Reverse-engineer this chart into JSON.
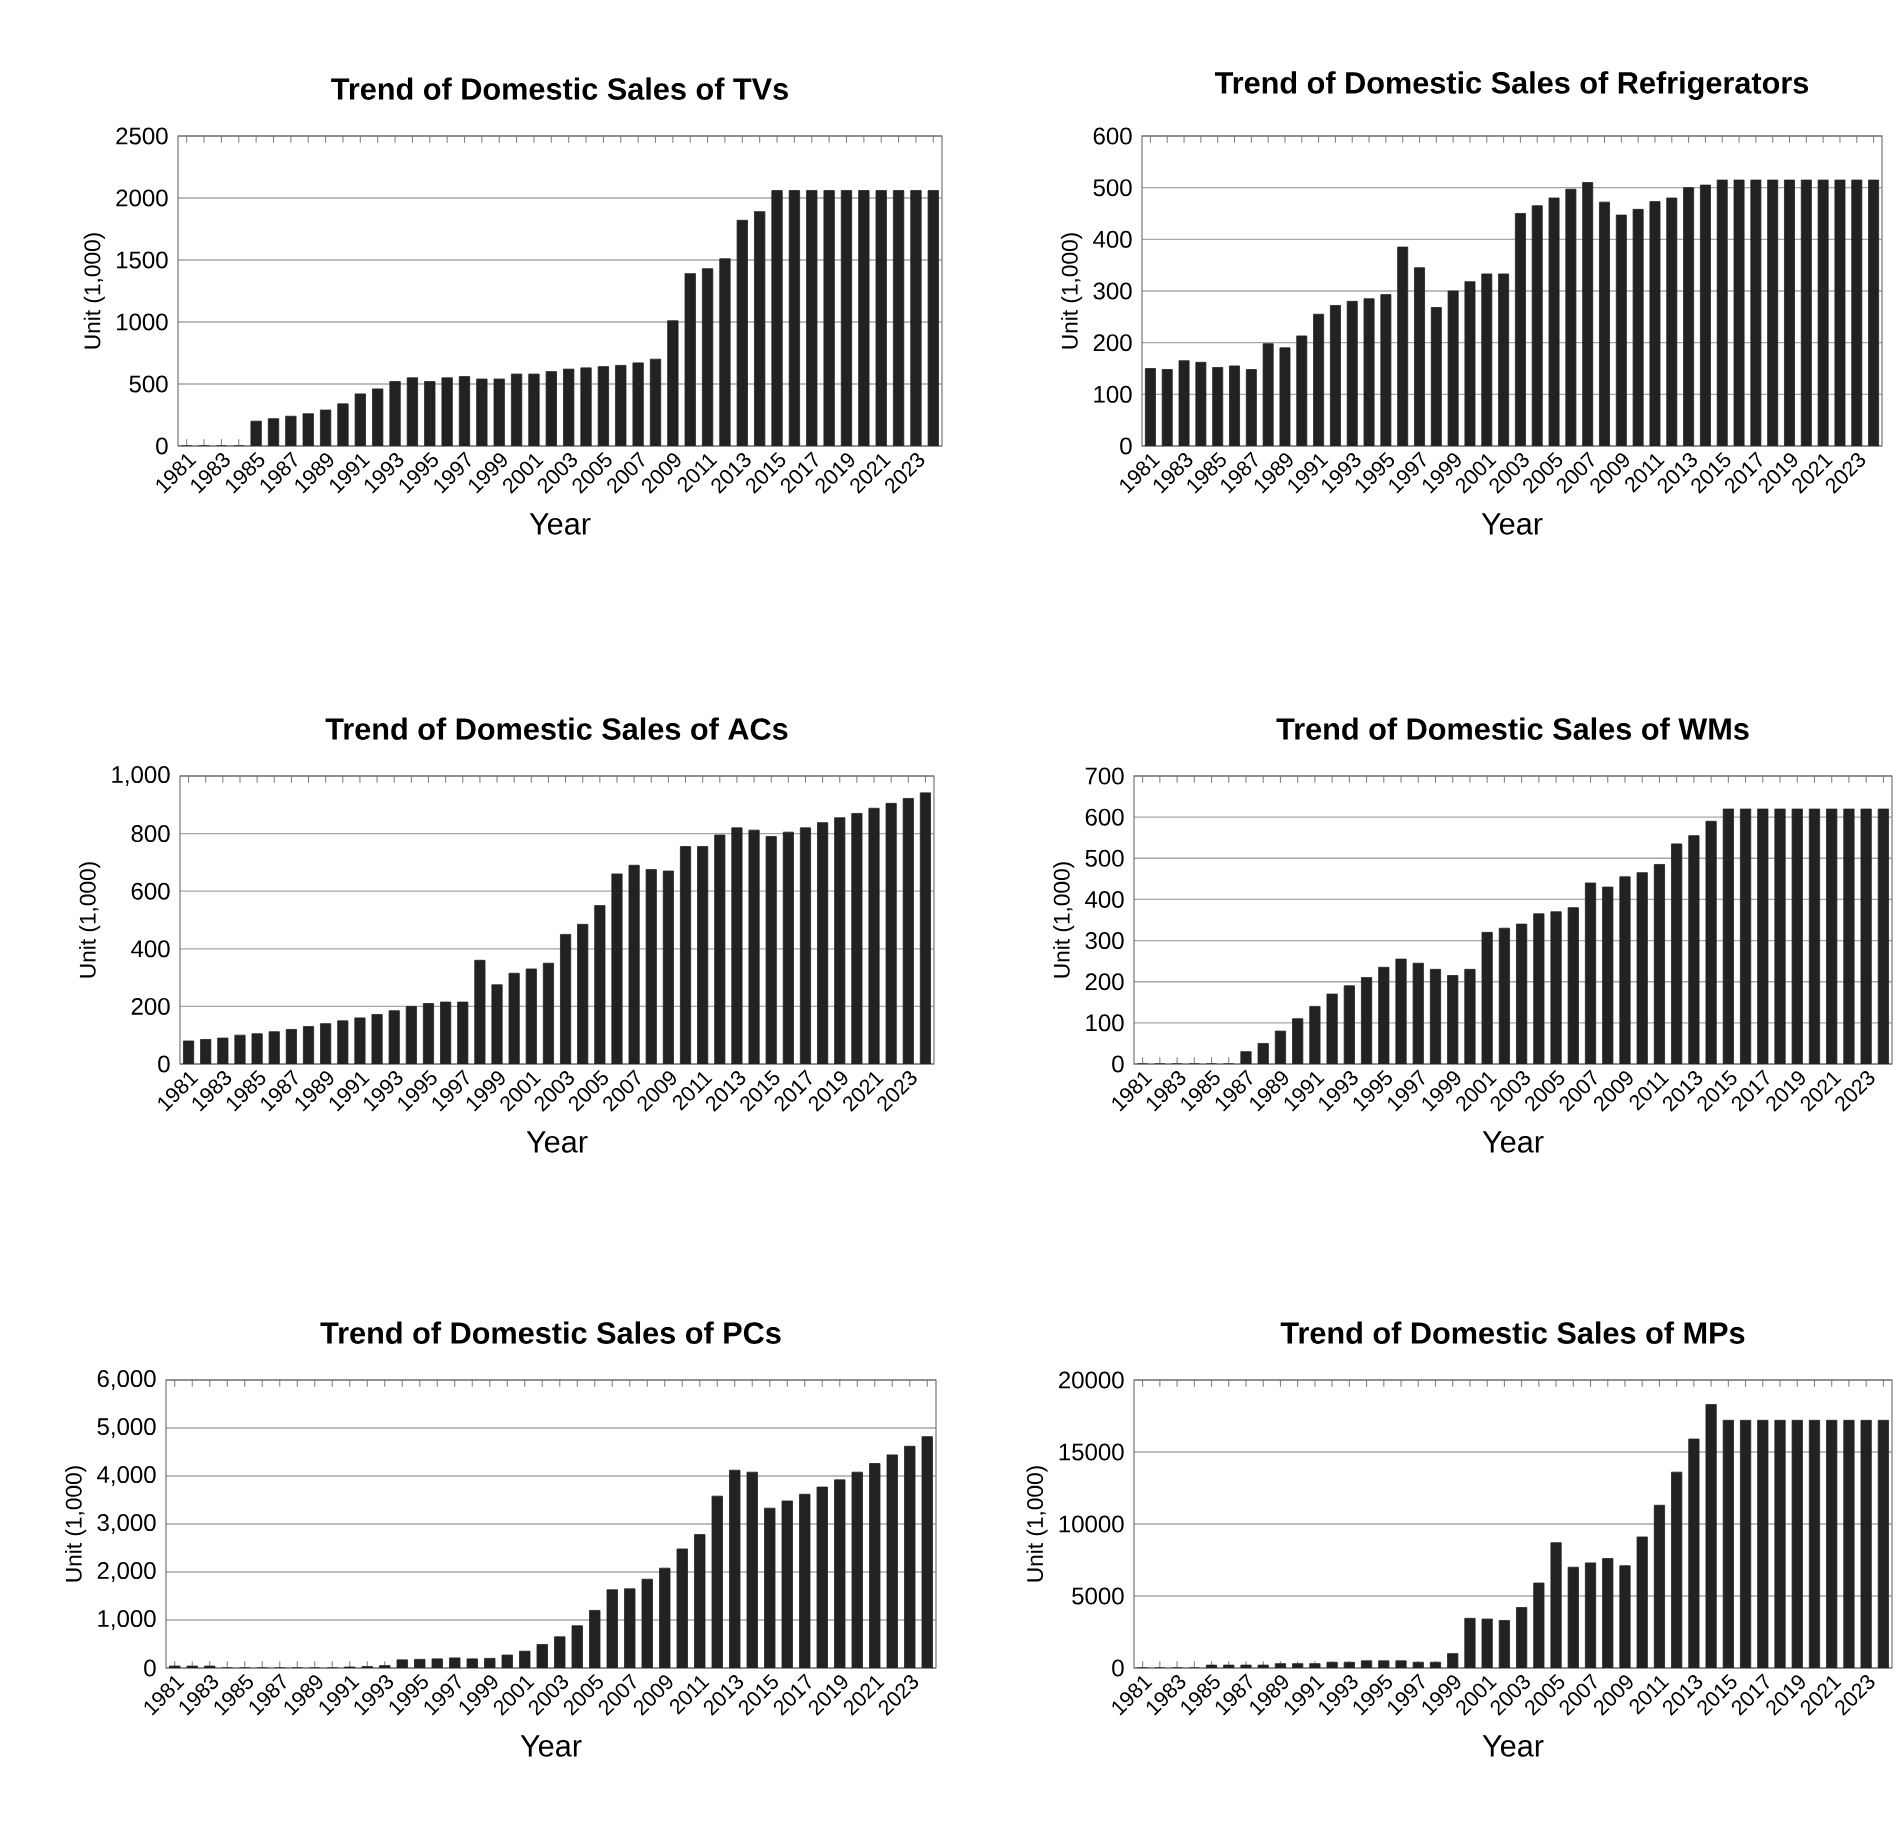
{
  "chart_data": [
    {
      "type": "bar",
      "title": "Trend of Domestic Sales of TVs",
      "xlabel": "Year",
      "ylabel": "Unit (1,000)",
      "color": "#222222",
      "grid": "y",
      "ylim": [
        0,
        2500
      ],
      "yticks": [
        0,
        500,
        1000,
        1500,
        2000,
        2500
      ],
      "categories": [
        "1981",
        null,
        "1983",
        null,
        "1985",
        null,
        "1987",
        null,
        "1989",
        null,
        "1991",
        null,
        "1993",
        null,
        "1995",
        null,
        "1997",
        null,
        "1999",
        null,
        "2001",
        null,
        "2003",
        null,
        "2005",
        null,
        "2007",
        null,
        "2009",
        null,
        "2011",
        null,
        "2013",
        null,
        "2015",
        null,
        "2017",
        null,
        "2019",
        null,
        "2021",
        null,
        "2023",
        null
      ],
      "values": [
        0,
        0,
        0,
        0,
        200,
        220,
        240,
        260,
        290,
        340,
        420,
        460,
        520,
        550,
        520,
        550,
        560,
        540,
        540,
        580,
        580,
        600,
        620,
        630,
        640,
        650,
        670,
        700,
        1010,
        1390,
        1430,
        1510,
        1820,
        1890,
        2060,
        2060,
        2060,
        2060,
        2060,
        2060,
        2060,
        2060,
        2060,
        2060
      ]
    },
    {
      "type": "bar",
      "title": "Trend of Domestic Sales of Refrigerators",
      "xlabel": "Year",
      "ylabel": "Unit (1,000)",
      "color": "#222222",
      "grid": "y",
      "ylim": [
        0,
        600
      ],
      "yticks": [
        0,
        100,
        200,
        300,
        400,
        500,
        600
      ],
      "categories": [
        "1981",
        null,
        "1983",
        null,
        "1985",
        null,
        "1987",
        null,
        "1989",
        null,
        "1991",
        null,
        "1993",
        null,
        "1995",
        null,
        "1997",
        null,
        "1999",
        null,
        "2001",
        null,
        "2003",
        null,
        "2005",
        null,
        "2007",
        null,
        "2009",
        null,
        "2011",
        null,
        "2013",
        null,
        "2015",
        null,
        "2017",
        null,
        "2019",
        null,
        "2021",
        null,
        "2023",
        null
      ],
      "values": [
        150,
        148,
        165,
        162,
        152,
        155,
        148,
        198,
        190,
        213,
        255,
        272,
        280,
        285,
        293,
        385,
        345,
        268,
        300,
        318,
        333,
        333,
        450,
        465,
        480,
        497,
        510,
        472,
        447,
        458,
        473,
        480,
        500,
        505,
        515,
        515,
        515,
        515,
        515,
        515,
        515,
        515,
        515,
        515
      ]
    },
    {
      "type": "bar",
      "title": "Trend of Domestic Sales of ACs",
      "xlabel": "Year",
      "ylabel": "Unit (1,000)",
      "color": "#222222",
      "grid": "y",
      "ylim": [
        0,
        1000
      ],
      "yticks": [
        0,
        200,
        400,
        600,
        800,
        {
          "value": 1000,
          "label": "1,000"
        }
      ],
      "categories": [
        "1981",
        null,
        "1983",
        null,
        "1985",
        null,
        "1987",
        null,
        "1989",
        null,
        "1991",
        null,
        "1993",
        null,
        "1995",
        null,
        "1997",
        null,
        "1999",
        null,
        "2001",
        null,
        "2003",
        null,
        "2005",
        null,
        "2007",
        null,
        "2009",
        null,
        "2011",
        null,
        "2013",
        null,
        "2015",
        null,
        "2017",
        null,
        "2019",
        null,
        "2021",
        null,
        "2023",
        null
      ],
      "values": [
        80,
        85,
        90,
        100,
        105,
        112,
        120,
        130,
        140,
        150,
        160,
        172,
        185,
        200,
        210,
        215,
        215,
        360,
        275,
        315,
        330,
        350,
        450,
        485,
        550,
        660,
        690,
        675,
        670,
        755,
        755,
        795,
        820,
        812,
        790,
        805,
        820,
        838,
        855,
        870,
        888,
        905,
        922,
        942
      ]
    },
    {
      "type": "bar",
      "title": "Trend of Domestic Sales of WMs",
      "xlabel": "Year",
      "ylabel": "Unit (1,000)",
      "color": "#222222",
      "grid": "y",
      "ylim": [
        0,
        700
      ],
      "yticks": [
        0,
        100,
        200,
        300,
        400,
        500,
        600,
        700
      ],
      "categories": [
        "1981",
        null,
        "1983",
        null,
        "1985",
        null,
        "1987",
        null,
        "1989",
        null,
        "1991",
        null,
        "1993",
        null,
        "1995",
        null,
        "1997",
        null,
        "1999",
        null,
        "2001",
        null,
        "2003",
        null,
        "2005",
        null,
        "2007",
        null,
        "2009",
        null,
        "2011",
        null,
        "2013",
        null,
        "2015",
        null,
        "2017",
        null,
        "2019",
        null,
        "2021",
        null,
        "2023",
        null
      ],
      "values": [
        0,
        0,
        0,
        0,
        0,
        0,
        30,
        50,
        80,
        110,
        140,
        170,
        190,
        210,
        235,
        255,
        245,
        230,
        215,
        230,
        320,
        330,
        340,
        365,
        370,
        380,
        440,
        430,
        455,
        465,
        485,
        535,
        555,
        590,
        620,
        620,
        620,
        620,
        620,
        620,
        620,
        620,
        620,
        620
      ]
    },
    {
      "type": "bar",
      "title": "Trend of Domestic Sales of PCs",
      "xlabel": "Year",
      "ylabel": "Unit (1,000)",
      "color": "#222222",
      "grid": "y",
      "ylim": [
        0,
        6000
      ],
      "yticks": [
        0,
        {
          "value": 1000,
          "label": "1,000"
        },
        {
          "value": 2000,
          "label": "2,000"
        },
        {
          "value": 3000,
          "label": "3,000"
        },
        {
          "value": 4000,
          "label": "4,000"
        },
        {
          "value": 5000,
          "label": "5,000"
        },
        {
          "value": 6000,
          "label": "6,000"
        }
      ],
      "categories": [
        "1981",
        null,
        "1983",
        null,
        "1985",
        null,
        "1987",
        null,
        "1989",
        null,
        "1991",
        null,
        "1993",
        null,
        "1995",
        null,
        "1997",
        null,
        "1999",
        null,
        "2001",
        null,
        "2003",
        null,
        "2005",
        null,
        "2007",
        null,
        "2009",
        null,
        "2011",
        null,
        "2013",
        null,
        "2015",
        null,
        "2017",
        null,
        "2019",
        null,
        "2021",
        null,
        "2023",
        null
      ],
      "values": [
        40,
        40,
        40,
        0,
        0,
        0,
        0,
        0,
        0,
        0,
        20,
        30,
        50,
        170,
        180,
        190,
        210,
        190,
        200,
        270,
        350,
        490,
        650,
        880,
        1200,
        1630,
        1650,
        1850,
        2080,
        2480,
        2780,
        3580,
        4120,
        4080,
        3330,
        3480,
        3620,
        3770,
        3920,
        4080,
        4260,
        4440,
        4620,
        4820
      ]
    },
    {
      "type": "bar",
      "title": "Trend of Domestic Sales of MPs",
      "xlabel": "Year",
      "ylabel": "Unit (1,000)",
      "color": "#222222",
      "grid": "y",
      "ylim": [
        0,
        20000
      ],
      "yticks": [
        0,
        5000,
        10000,
        15000,
        20000
      ],
      "categories": [
        "1981",
        null,
        "1983",
        null,
        "1985",
        null,
        "1987",
        null,
        "1989",
        null,
        "1991",
        null,
        "1993",
        null,
        "1995",
        null,
        "1997",
        null,
        "1999",
        null,
        "2001",
        null,
        "2003",
        null,
        "2005",
        null,
        "2007",
        null,
        "2009",
        null,
        "2011",
        null,
        "2013",
        null,
        "2015",
        null,
        "2017",
        null,
        "2019",
        null,
        "2021",
        null,
        "2023",
        null
      ],
      "values": [
        0,
        0,
        0,
        0,
        200,
        200,
        200,
        200,
        300,
        300,
        300,
        400,
        400,
        500,
        500,
        500,
        400,
        400,
        1000,
        3450,
        3400,
        3300,
        4200,
        5900,
        8700,
        7000,
        7300,
        7600,
        7100,
        9100,
        11300,
        13600,
        15900,
        18300,
        17200,
        17200,
        17200,
        17200,
        17200,
        17200,
        17200,
        17200,
        17200,
        17200
      ]
    }
  ]
}
